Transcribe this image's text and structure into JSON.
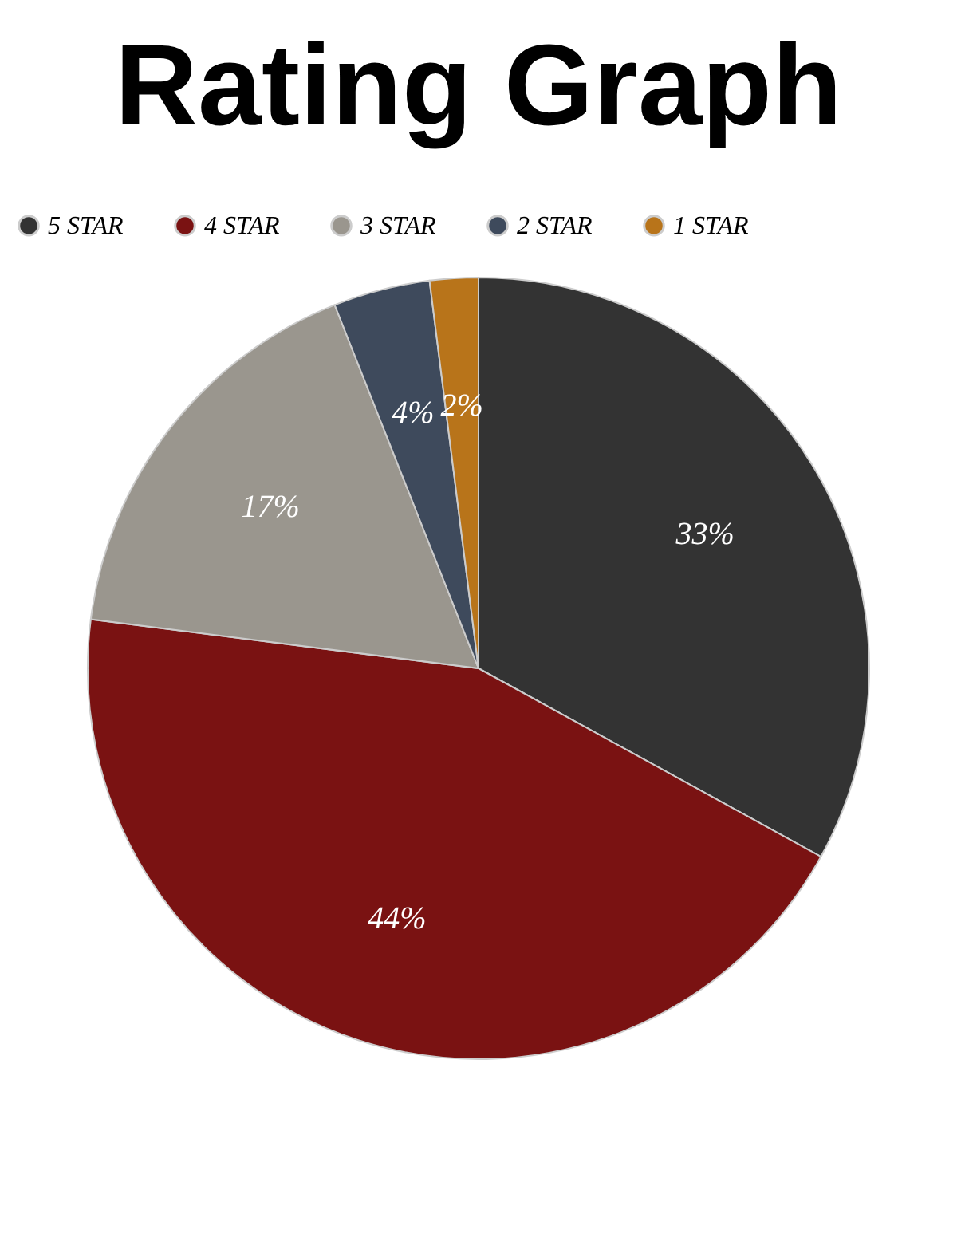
{
  "chart_data": {
    "type": "pie",
    "title": "Rating Graph",
    "categories": [
      "5 STAR",
      "4 STAR",
      "3 STAR",
      "2 STAR",
      "1 STAR"
    ],
    "values": [
      33,
      44,
      17,
      4,
      2
    ],
    "value_labels": [
      "33%",
      "44%",
      "17%",
      "4%",
      "2%"
    ],
    "colors": [
      "#333333",
      "#7a1212",
      "#9a968e",
      "#3e4a5c",
      "#b8741a"
    ],
    "legend": "top"
  }
}
